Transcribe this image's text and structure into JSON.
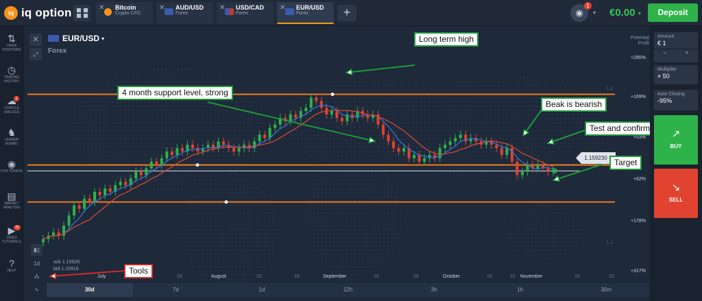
{
  "header": {
    "logo_text": "iq option",
    "tabs": [
      {
        "name": "Bitcoin",
        "sub": "Crypto CFD",
        "icon": "bitcoin-icon",
        "color": "#f7931a"
      },
      {
        "name": "AUD/USD",
        "sub": "Forex",
        "icon": "flag-aud-usd-icon",
        "color": "#3b5bab"
      },
      {
        "name": "USD/CAD",
        "sub": "Forex",
        "icon": "flag-usd-cad-icon",
        "color": "#c0392b"
      },
      {
        "name": "EUR/USD",
        "sub": "Forex",
        "icon": "flag-eur-usd-icon",
        "color": "#3b5bab",
        "active": true
      }
    ],
    "add_tab": "+",
    "notification_count": "1",
    "balance": "€0.00",
    "deposit_label": "Deposit"
  },
  "sidebar": {
    "items": [
      {
        "icon": "⇅",
        "label": "OPEN POSITIONS"
      },
      {
        "icon": "◷",
        "label": "TRADING HISTORY"
      },
      {
        "icon": "☁",
        "label": "CHATS & DIALOGS",
        "badge": "1"
      },
      {
        "icon": "♞",
        "label": "LEADER BOARD"
      },
      {
        "icon": "◉",
        "label": "OTN TOKENS"
      },
      {
        "icon": "▤",
        "label": "MARKET ANALYSIS"
      },
      {
        "icon": "▶",
        "label": "VIDEO TUTORIALS",
        "badge": "75"
      },
      {
        "icon": "?",
        "label": "HELP"
      }
    ]
  },
  "asset": {
    "name": "EUR/USD",
    "caret": "▾",
    "category": "Forex",
    "potential_label": "Potential Profit",
    "current_price": "1.159230",
    "ask": "ask 1.15928",
    "bid": "bid 1.15918"
  },
  "right_axis": [
    "+285%",
    "+169%",
    "+53%",
    "+62%",
    "+178%",
    "+317%"
  ],
  "scale_markers": [
    "1.2",
    "1.1"
  ],
  "x_labels": [
    "July",
    "29",
    "August",
    "15",
    "29",
    "September",
    "15",
    "29",
    "October",
    "15",
    "22",
    "November",
    "15",
    "23"
  ],
  "timeframes": [
    "30d",
    "7d",
    "1d",
    "12h",
    "3h",
    "1h",
    "30m"
  ],
  "tools": [
    "1d",
    "⁂",
    "∿"
  ],
  "annotations": {
    "long_term_high": "Long term high",
    "support": "4 month support level, strong",
    "beak": "Beak is bearish",
    "test": "Test and confirms",
    "target": "Target",
    "tools": "Tools"
  },
  "trade_panel": {
    "amount_label": "Amount",
    "amount_value": "€ 1",
    "multiplier_label": "Multiplier",
    "multiplier_value": "× 50",
    "auto_closing_label": "Auto Closing",
    "auto_closing_value": "-95%",
    "minus": "−",
    "plus": "+",
    "buy_label": "BUY",
    "sell_label": "SELL"
  },
  "colors": {
    "bull": "#2db34a",
    "bear": "#e0432f",
    "level_line": "#f07d1a",
    "ma_fast": "#3a6fd8",
    "ma_slow": "#d14a34"
  },
  "chart_data": {
    "type": "candlestick",
    "resistance_level": 1.182,
    "support_level": 1.161,
    "target_level": 1.15,
    "current_price": 1.15923,
    "closes": [
      1.139,
      1.14,
      1.141,
      1.14,
      1.143,
      1.146,
      1.149,
      1.148,
      1.151,
      1.15,
      1.153,
      1.152,
      1.154,
      1.153,
      1.155,
      1.156,
      1.155,
      1.157,
      1.159,
      1.158,
      1.16,
      1.162,
      1.161,
      1.163,
      1.165,
      1.164,
      1.166,
      1.165,
      1.167,
      1.166,
      1.165,
      1.166,
      1.167,
      1.166,
      1.168,
      1.167,
      1.166,
      1.165,
      1.166,
      1.167,
      1.166,
      1.168,
      1.17,
      1.169,
      1.172,
      1.173,
      1.175,
      1.174,
      1.176,
      1.175,
      1.177,
      1.178,
      1.181,
      1.18,
      1.178,
      1.176,
      1.177,
      1.175,
      1.174,
      1.176,
      1.175,
      1.177,
      1.176,
      1.175,
      1.176,
      1.173,
      1.17,
      1.168,
      1.166,
      1.165,
      1.166,
      1.163,
      1.164,
      1.162,
      1.163,
      1.164,
      1.163,
      1.166,
      1.167,
      1.168,
      1.169,
      1.17,
      1.168,
      1.169,
      1.168,
      1.167,
      1.168,
      1.167,
      1.166,
      1.164,
      1.166,
      1.162,
      1.158,
      1.159,
      1.161,
      1.16,
      1.161,
      1.16,
      1.159,
      1.1592
    ]
  }
}
